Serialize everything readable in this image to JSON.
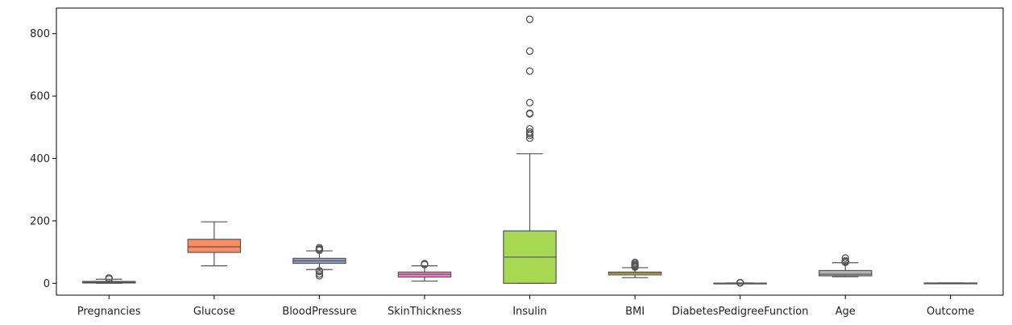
{
  "chart_data": {
    "type": "boxplot",
    "title": "",
    "xlabel": "",
    "ylabel": "",
    "ylim": [
      -38,
      882
    ],
    "yticks": [
      0,
      200,
      400,
      600,
      800
    ],
    "grid": false,
    "legend": "none",
    "categories": [
      "Pregnancies",
      "Glucose",
      "BloodPressure",
      "SkinThickness",
      "Insulin",
      "BMI",
      "DiabetesPedigreeFunction",
      "Age",
      "Outcome"
    ],
    "boxes": [
      {
        "category": "Pregnancies",
        "color": "#66c2a5",
        "whisker_low": 0,
        "q1": 1,
        "median": 3,
        "q3": 6,
        "whisker_high": 13,
        "outliers": [
          14,
          15,
          17
        ]
      },
      {
        "category": "Glucose",
        "color": "#fc8d62",
        "whisker_low": 56,
        "q1": 99,
        "median": 117,
        "q3": 141,
        "whisker_high": 197,
        "outliers": []
      },
      {
        "category": "BloodPressure",
        "color": "#8da0cb",
        "whisker_low": 44,
        "q1": 64,
        "median": 72,
        "q3": 80,
        "whisker_high": 104,
        "outliers": [
          24,
          30,
          38,
          40,
          106,
          108,
          110,
          114
        ]
      },
      {
        "category": "SkinThickness",
        "color": "#e78ac3",
        "whisker_low": 7,
        "q1": 20,
        "median": 29,
        "q3": 36,
        "whisker_high": 56,
        "outliers": [
          60,
          63
        ]
      },
      {
        "category": "Insulin",
        "color": "#a6d854",
        "whisker_low": 0,
        "q1": 0,
        "median": 84,
        "q3": 168,
        "whisker_high": 415,
        "outliers": [
          465,
          474,
          480,
          485,
          495,
          543,
          545,
          579,
          680,
          744,
          846
        ]
      },
      {
        "category": "BMI",
        "color": "#ffd92f",
        "whisker_low": 18,
        "q1": 27,
        "median": 32,
        "q3": 36,
        "whisker_high": 50,
        "outliers": [
          52,
          55,
          57,
          59,
          63,
          67
        ]
      },
      {
        "category": "DiabetesPedigreeFunction",
        "color": "#e5c494",
        "whisker_low": 0.08,
        "q1": 0.24,
        "median": 0.37,
        "q3": 0.63,
        "whisker_high": 1.2,
        "outliers": [
          1.3,
          1.6,
          2.0,
          2.4
        ]
      },
      {
        "category": "Age",
        "color": "#b3b3b3",
        "whisker_low": 21,
        "q1": 24,
        "median": 29,
        "q3": 41,
        "whisker_high": 66,
        "outliers": [
          67,
          68,
          69,
          70,
          72,
          81
        ]
      },
      {
        "category": "Outcome",
        "color": "#66c2a5",
        "whisker_low": 0,
        "q1": 0,
        "median": 0,
        "q3": 1,
        "whisker_high": 1,
        "outliers": []
      }
    ]
  }
}
